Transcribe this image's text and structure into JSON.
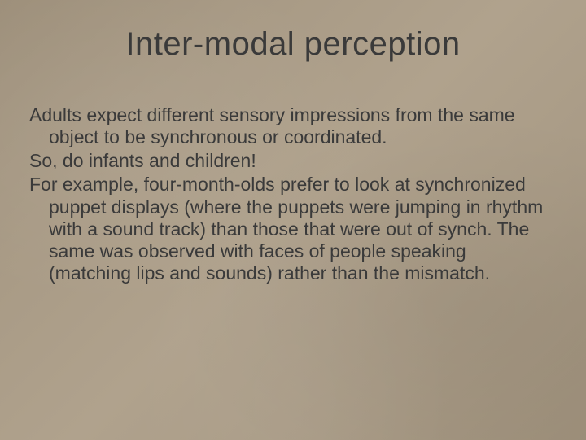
{
  "slide": {
    "title": "Inter-modal perception",
    "paragraphs": [
      "Adults expect different sensory impressions from the same object to be synchronous or coordinated.",
      "So, do infants and children!",
      "For example, four-month-olds prefer to look at synchronized puppet displays (where the puppets were jumping in rhythm with a sound track) than those that were out of synch. The same was observed with faces of people speaking (matching lips and sounds) rather than the mismatch."
    ]
  },
  "style": {
    "background_colors": [
      "#9d8f7a",
      "#a89a85",
      "#b0a28d"
    ],
    "text_color": "#3a3a3a",
    "title_fontsize": 40,
    "body_fontsize": 23,
    "font_family": "Verdana"
  }
}
